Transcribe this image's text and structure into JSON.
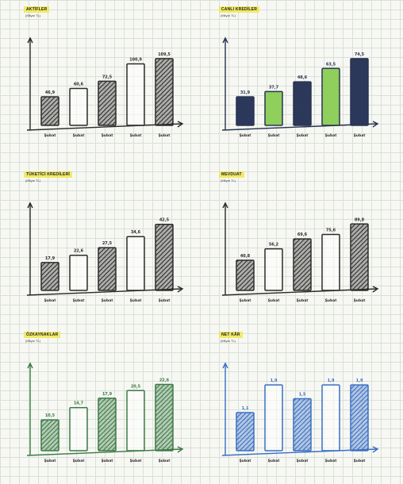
{
  "chart_data": [
    {
      "type": "bar",
      "title": "AKTİFLER",
      "unit": "(Milyar TL)",
      "categories": [
        "Şubat",
        "Şubat",
        "Şubat",
        "Şubat",
        "Şubat"
      ],
      "values": [
        46.9,
        60.6,
        72.5,
        100.9,
        109.5
      ],
      "labels": [
        "46,9",
        "60,6",
        "72,5",
        "100,9",
        "109,5"
      ],
      "ylim": [
        0,
        125
      ],
      "color": "#2b2b2b",
      "fills": [
        "hatch",
        "empty",
        "hatch",
        "empty",
        "hatch"
      ]
    },
    {
      "type": "bar",
      "title": "CANLI KREDİLER",
      "unit": "(Milyar TL)",
      "categories": [
        "Şubat",
        "Şubat",
        "Şubat",
        "Şubat",
        "Şubat"
      ],
      "values": [
        31.9,
        37.7,
        48.6,
        63.5,
        74.5
      ],
      "labels": [
        "31,9",
        "37,7",
        "48,6",
        "63,5",
        "74,5"
      ],
      "ylim": [
        0,
        85
      ],
      "color": "#2a3350",
      "fills": [
        "navy",
        "green",
        "navy",
        "green",
        "navy"
      ]
    },
    {
      "type": "bar",
      "title": "TÜKETİCİ KREDİLERİ",
      "unit": "(Milyar TL)",
      "categories": [
        "Şubat",
        "Şubat",
        "Şubat",
        "Şubat",
        "Şubat"
      ],
      "values": [
        17.9,
        22.6,
        27.5,
        34.6,
        42.5
      ],
      "labels": [
        "17,9",
        "22,6",
        "27,5",
        "34,6",
        "42,5"
      ],
      "ylim": [
        0,
        49
      ],
      "color": "#2b2b2b",
      "fills": [
        "hatch",
        "empty",
        "hatch",
        "empty",
        "hatch"
      ]
    },
    {
      "type": "bar",
      "title": "MEVDUAT",
      "unit": "(Milyar TL)",
      "categories": [
        "Şubat",
        "Şubat",
        "Şubat",
        "Şubat",
        "Şubat"
      ],
      "values": [
        40.8,
        56.2,
        69.6,
        75.6,
        89.8
      ],
      "labels": [
        "40,8",
        "56,2",
        "69,6",
        "75,6",
        "89,8"
      ],
      "ylim": [
        0,
        103
      ],
      "color": "#2b2b2b",
      "fills": [
        "hatch",
        "empty",
        "hatch",
        "empty",
        "hatch"
      ]
    },
    {
      "type": "bar",
      "title": "ÖZKAYNAKLAR",
      "unit": "(Milyar TL)",
      "categories": [
        "Şubat",
        "Şubat",
        "Şubat",
        "Şubat",
        "Şubat"
      ],
      "values": [
        10.5,
        14.7,
        17.9,
        20.5,
        22.6
      ],
      "labels": [
        "10,5",
        "14,7",
        "17,9",
        "20,5",
        "22,6"
      ],
      "ylim": [
        0,
        26
      ],
      "color": "#3c7a45",
      "fills": [
        "hatch",
        "empty",
        "hatch",
        "empty",
        "hatch"
      ]
    },
    {
      "type": "bar",
      "title": "NET KÂR",
      "unit": "(Milyar TL)",
      "categories": [
        "Şubat",
        "Şubat",
        "Şubat",
        "Şubat",
        "Şubat"
      ],
      "values": [
        1.1,
        1.9,
        1.5,
        1.9,
        1.9
      ],
      "labels": [
        "1,1",
        "1,9",
        "1,5",
        "1,9",
        "1,9"
      ],
      "ylim": [
        0,
        2.2
      ],
      "color": "#3a6fc4",
      "fills": [
        "hatch",
        "empty",
        "hatch",
        "empty",
        "hatch"
      ]
    }
  ]
}
